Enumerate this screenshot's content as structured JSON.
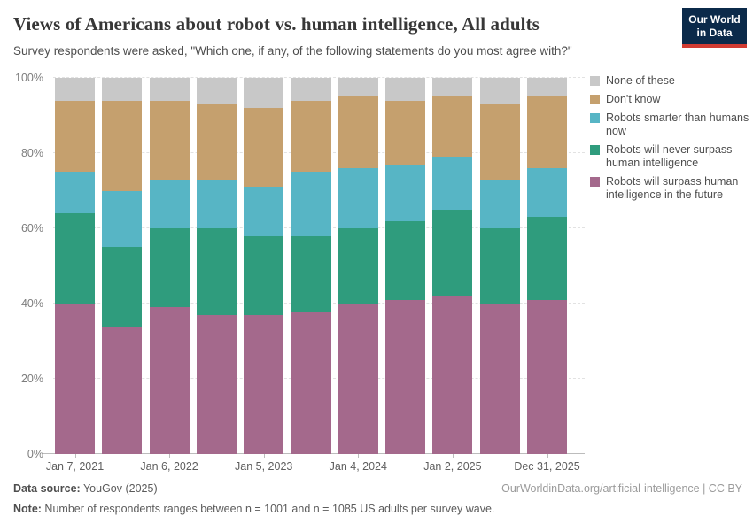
{
  "header": {
    "title": "Views of Americans about robot vs. human intelligence, All adults",
    "subtitle": "Survey respondents were asked, \"Which one, if any, of the following statements do you most agree with?\"",
    "logo_line1": "Our World",
    "logo_line2": "in Data",
    "logo_bg": "#0b2a4a",
    "logo_accent": "#d13b32"
  },
  "chart_data": {
    "type": "bar",
    "stacked": true,
    "unit": "%",
    "ylim": [
      0,
      100
    ],
    "grid": true,
    "legend_position": "right",
    "y_tick_labels": [
      "0%",
      "20%",
      "40%",
      "60%",
      "80%",
      "100%"
    ],
    "y_tick_values": [
      0,
      20,
      40,
      60,
      80,
      100
    ],
    "x_tick_labels": [
      "Jan 7, 2021",
      "Jan 6, 2022",
      "Jan 5, 2023",
      "Jan 4, 2024",
      "Jan 2, 2025",
      "Dec 31, 2025"
    ],
    "labeled_bar_indices": [
      0,
      2,
      4,
      6,
      8,
      10
    ],
    "num_bars": 11,
    "series": [
      {
        "name": "Robots will surpass human intelligence in the future",
        "color": "#a4698c",
        "values": [
          40,
          34,
          39,
          37,
          37,
          38,
          40,
          41,
          42,
          40,
          41
        ]
      },
      {
        "name": "Robots will never surpass human intelligence",
        "color": "#2f9c7d",
        "values": [
          24,
          21,
          21,
          23,
          21,
          20,
          20,
          21,
          23,
          20,
          22
        ]
      },
      {
        "name": "Robots smarter than humans now",
        "color": "#57b5c5",
        "values": [
          11,
          15,
          13,
          13,
          13,
          17,
          16,
          15,
          14,
          13,
          13
        ]
      },
      {
        "name": "Don't know",
        "color": "#c5a06e",
        "values": [
          19,
          24,
          21,
          20,
          21,
          19,
          19,
          17,
          16,
          20,
          19
        ]
      },
      {
        "name": "None of these",
        "color": "#c8c8c8",
        "values": [
          6,
          6,
          6,
          7,
          8,
          6,
          5,
          6,
          5,
          7,
          5
        ]
      }
    ],
    "legend_order": [
      "None of these",
      "Don't know",
      "Robots smarter than humans now",
      "Robots will never surpass human intelligence",
      "Robots will surpass human intelligence in the future"
    ]
  },
  "footer": {
    "datasource_label": "Data source:",
    "datasource_value": " YouGov (2025)",
    "attribution": "OurWorldinData.org/artificial-intelligence | CC BY",
    "note_label": "Note:",
    "note_value": " Number of respondents ranges between n = 1001 and n = 1085 US adults per survey wave."
  }
}
